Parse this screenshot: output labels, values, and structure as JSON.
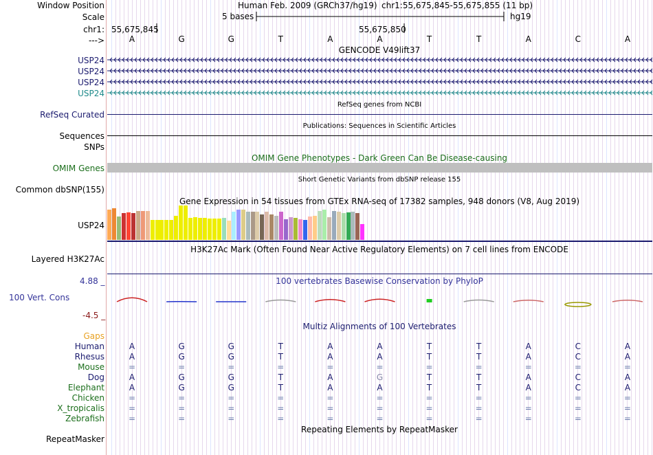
{
  "header": {
    "window_position_label": "Window Position",
    "scale_label": "Scale",
    "chr_label": "chr1:",
    "strand_label": "--->",
    "assembly": "Human Feb. 2009 (GRCh37/hg19)",
    "position": "chr1:55,675,845-55,675,855 (11 bp)",
    "scale_text": "5 bases",
    "db": "hg19",
    "coord_left": "55,675,845",
    "coord_mid": "55,675,850"
  },
  "sequence": [
    "A",
    "G",
    "G",
    "T",
    "A",
    "A",
    "T",
    "T",
    "A",
    "C",
    "A"
  ],
  "tracks": {
    "gencode": {
      "title": "GENCODE V49lift37",
      "labels": [
        "USP24",
        "USP24",
        "USP24",
        "USP24"
      ],
      "strand": "minus"
    },
    "refseq": {
      "label": "RefSeq Curated",
      "title": "RefSeq genes from NCBI"
    },
    "publications": {
      "label": "Sequences",
      "title": "Publications: Sequences in Scientific Articles"
    },
    "snps": {
      "label": "SNPs"
    },
    "omim": {
      "label": "OMIM Genes",
      "title": "OMIM Gene Phenotypes - Dark Green Can Be Disease-causing"
    },
    "dbsnp": {
      "label": "Common dbSNP(155)",
      "title": "Short Genetic Variants from dbSNP release 155"
    },
    "gtex": {
      "label": "USP24",
      "title": "Gene Expression in 54 tissues from GTEx RNA-seq of 17382 samples, 948 donors (V8, Aug 2019)",
      "values": [
        0.88,
        0.92,
        0.68,
        0.77,
        0.79,
        0.77,
        0.84,
        0.84,
        0.84,
        0.58,
        0.58,
        0.58,
        0.58,
        0.58,
        0.7,
        0.99,
        0.99,
        0.64,
        0.66,
        0.64,
        0.64,
        0.62,
        0.62,
        0.62,
        0.64,
        0.56,
        0.82,
        0.88,
        0.88,
        0.82,
        0.82,
        0.82,
        0.73,
        0.82,
        0.73,
        0.7,
        0.82,
        0.6,
        0.66,
        0.64,
        0.6,
        0.58,
        0.68,
        0.7,
        0.84,
        0.88,
        0.66,
        0.84,
        0.82,
        0.77,
        0.79,
        0.82,
        0.77,
        0.46
      ],
      "colors": [
        "#ffaa55",
        "#ee8833",
        "#99bb77",
        "#cc3333",
        "#ff4433",
        "#bb3333",
        "#ccaa88",
        "#ee9977",
        "#eebb99",
        "#eeee00",
        "#eeee00",
        "#eeee00",
        "#eeee00",
        "#eeee00",
        "#eeee00",
        "#eeee00",
        "#eeee00",
        "#eeee00",
        "#eeee00",
        "#eeee00",
        "#eeee00",
        "#eeee00",
        "#eeee00",
        "#eeee00",
        "#99ddbb",
        "#ffdd99",
        "#aaeeff",
        "#9999ff",
        "#ddcc88",
        "#aabbbb",
        "#aa9988",
        "#ddccaa",
        "#776655",
        "#ddbbaa",
        "#aa8866",
        "#bbbbbb",
        "#cc66cc",
        "#9966cc",
        "#cc99cc",
        "#aabb33",
        "#ee88cc",
        "#3366ee",
        "#ffbbaa",
        "#ffcc88",
        "#bbddbb",
        "#aaeeaa",
        "#ccbbaa",
        "#99aabb",
        "#ddccaa",
        "#aaddaa",
        "#33aa55",
        "#aabbbb",
        "#996655",
        "#ff33ff"
      ]
    },
    "h3k27ac": {
      "label": "Layered H3K27Ac",
      "title": "H3K27Ac Mark (Often Found Near Active Regulatory Elements) on 7 cell lines from ENCODE"
    },
    "cons": {
      "label": "100 Vert. Cons",
      "title": "100 vertebrates Basewise Conservation by PhyloP",
      "ymax": "4.88 _",
      "ymin": "-4.5 _",
      "values": [
        1.3,
        -0.9,
        -1.0,
        0.0,
        0.3,
        0.5,
        0.6,
        0.0,
        -0.1,
        -1.8,
        -0.1
      ],
      "colors": [
        "#cc2222",
        "#2233cc",
        "#2233cc",
        "#999999",
        "#cc2222",
        "#cc2222",
        "#22cc22",
        "#999999",
        "#cc6666",
        "#999900",
        "#cc6666"
      ]
    },
    "multiz": {
      "title": "Multiz Alignments of 100 Vertebrates",
      "gaps_label": "Gaps",
      "species": [
        {
          "name": "Human",
          "color": "#1a1a6e",
          "bases": [
            "A",
            "G",
            "G",
            "T",
            "A",
            "A",
            "T",
            "T",
            "A",
            "C",
            "A"
          ]
        },
        {
          "name": "Rhesus",
          "color": "#1a1a6e",
          "bases": [
            "A",
            "G",
            "G",
            "T",
            "A",
            "A",
            "T",
            "T",
            "A",
            "C",
            "A"
          ]
        },
        {
          "name": "Mouse",
          "color": "#1b6e1b",
          "bases": [
            "=",
            "=",
            "=",
            "=",
            "=",
            "=",
            "=",
            "=",
            "=",
            "=",
            "="
          ]
        },
        {
          "name": "Dog",
          "color": "#1a1a6e",
          "bases": [
            "A",
            "G",
            "G",
            "T",
            "A",
            "G",
            "T",
            "T",
            "A",
            "C",
            "A"
          ]
        },
        {
          "name": "Elephant",
          "color": "#1b6e1b",
          "bases": [
            "A",
            "G",
            "G",
            "T",
            "A",
            "A",
            "T",
            "T",
            "A",
            "C",
            "A"
          ]
        },
        {
          "name": "Chicken",
          "color": "#1b6e1b",
          "bases": [
            "=",
            "=",
            "=",
            "=",
            "=",
            "=",
            "=",
            "=",
            "=",
            "=",
            "="
          ]
        },
        {
          "name": "X_tropicalis",
          "color": "#1b6e1b",
          "bases": [
            "=",
            "=",
            "=",
            "=",
            "=",
            "=",
            "=",
            "=",
            "=",
            "=",
            "="
          ]
        },
        {
          "name": "Zebrafish",
          "color": "#1b6e1b",
          "bases": [
            "=",
            "=",
            "=",
            "=",
            "=",
            "=",
            "=",
            "=",
            "=",
            "=",
            "="
          ]
        }
      ]
    },
    "repeatmasker": {
      "label": "RepeatMasker",
      "title": "Repeating Elements by RepeatMasker"
    }
  },
  "colors": {
    "track_blue": "#1a1a6e",
    "omim_green": "#1b6e1b",
    "gaps_orange": "#e8a020",
    "cons_blue": "#333399",
    "cons_red": "#8b1a1a",
    "teal": "#1e8a8a"
  }
}
